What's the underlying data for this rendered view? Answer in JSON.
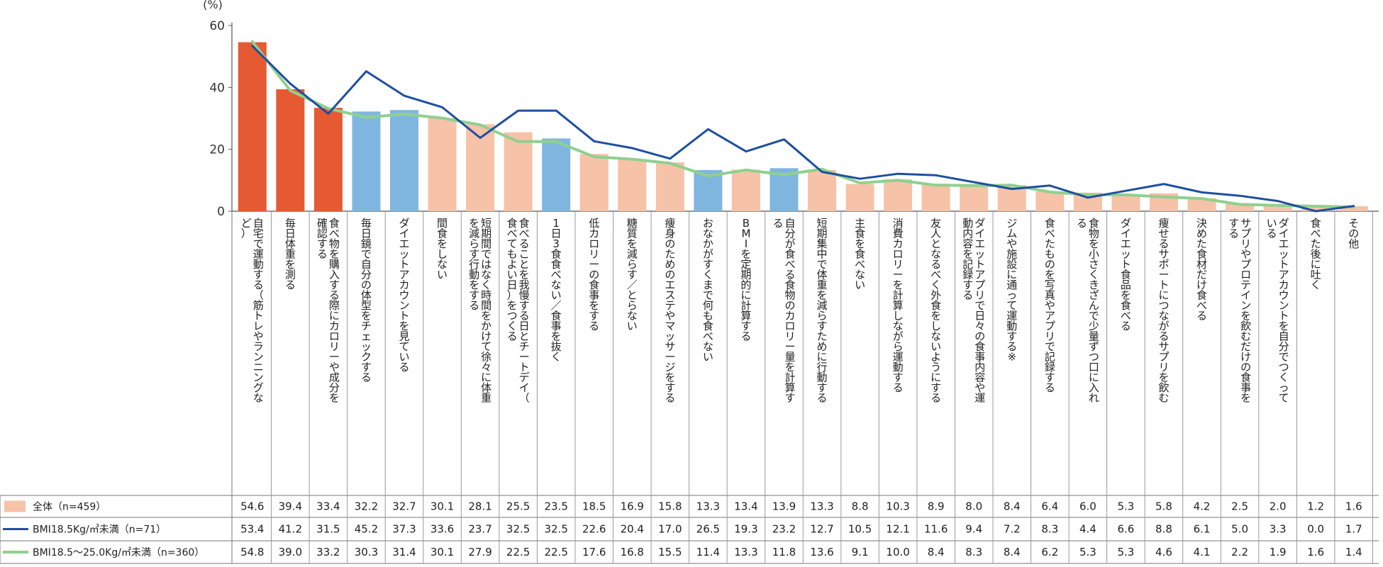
{
  "chart_data": {
    "type": "bar",
    "ylabel": "(%)",
    "ylim": [
      0,
      60
    ],
    "yticks": [
      "0",
      "20",
      "40",
      "60"
    ],
    "grid": false,
    "categories": [
      "自宅で運動する（筋トレやランニングなど）",
      "毎日体重を測る",
      "食べ物を購入する際にカロリーや成分を確認する",
      "毎日鏡で自分の体型をチェックする",
      "ダイエットアカウントを見ている",
      "間食をしない",
      "短期間ではなく時間をかけて徐々に体重を減らす行動をする",
      "食べることを我慢する日とチートデイ（食べてもよい日）をつくる",
      "1日3食食べない／食事を抜く",
      "低カロリーの食事をする",
      "糖質を減らす／とらない",
      "痩身のためのエステやマッサージをする",
      "おなかがすくまで何も食べない",
      "BMIを定期的に計算する",
      "自分が食べる食物のカロリー量を計算する",
      "短期集中で体重を減らすために行動する",
      "主食を食べない",
      "消費カロリーを計算しながら運動する",
      "友人となるべく外食をしないようにする",
      "ダイエットアプリで日々の食事内容や運動内容を記録する",
      "ジムや施設に通って運動する※",
      "食べたものを写真やアプリで記録する",
      "食物を小さくきざんで少量ずつ口に入れる",
      "ダイエット食品を食べる",
      "痩せるサポートにつながるサプリを飲む",
      "決めた食材だけ食べる",
      "サプリやプロテインを飲むだけの食事をする",
      "ダイエットアカウントを自分でつくっている",
      "食べた後に吐く",
      "その他"
    ],
    "bar_highlight": [
      "red",
      "red",
      "red",
      "blue",
      "blue",
      "peach",
      "peach",
      "peach",
      "blue",
      "peach",
      "peach",
      "peach",
      "blue",
      "peach",
      "blue",
      "peach",
      "peach",
      "peach",
      "peach",
      "peach",
      "peach",
      "peach",
      "peach",
      "peach",
      "peach",
      "peach",
      "peach",
      "peach",
      "peach",
      "peach"
    ],
    "colors": {
      "red": "#e55a33",
      "blue": "#7fb6e0",
      "peach": "#f6c2a8",
      "line_under": "#1d4fa0",
      "line_normal": "#8fd08f"
    },
    "series": [
      {
        "name": "全体（n=459）",
        "kind": "bar",
        "values": [
          "54.6",
          "39.4",
          "33.4",
          "32.2",
          "32.7",
          "30.1",
          "28.1",
          "25.5",
          "23.5",
          "18.5",
          "16.9",
          "15.8",
          "13.3",
          "13.4",
          "13.9",
          "13.3",
          "8.8",
          "10.3",
          "8.9",
          "8.0",
          "8.4",
          "6.4",
          "6.0",
          "5.3",
          "5.8",
          "4.2",
          "2.5",
          "2.0",
          "1.2",
          "1.6"
        ]
      },
      {
        "name": "BMI18.5Kg/㎡未満（n=71）",
        "kind": "line",
        "color_key": "line_under",
        "values": [
          "53.4",
          "41.2",
          "31.5",
          "45.2",
          "37.3",
          "33.6",
          "23.7",
          "32.5",
          "32.5",
          "22.6",
          "20.4",
          "17.0",
          "26.5",
          "19.3",
          "23.2",
          "12.7",
          "10.5",
          "12.1",
          "11.6",
          "9.4",
          "7.2",
          "8.3",
          "4.4",
          "6.6",
          "8.8",
          "6.1",
          "5.0",
          "3.3",
          "0.0",
          "1.7"
        ]
      },
      {
        "name": "BMI18.5～25.0Kg/㎡未満（n=360）",
        "kind": "line",
        "color_key": "line_normal",
        "values": [
          "54.8",
          "39.0",
          "33.2",
          "30.3",
          "31.4",
          "30.1",
          "27.9",
          "22.5",
          "22.5",
          "17.6",
          "16.8",
          "15.5",
          "11.4",
          "13.3",
          "11.8",
          "13.6",
          "9.1",
          "10.0",
          "8.4",
          "8.3",
          "8.4",
          "6.2",
          "5.3",
          "5.3",
          "4.6",
          "4.1",
          "2.2",
          "1.9",
          "1.6",
          "1.4"
        ]
      }
    ]
  }
}
